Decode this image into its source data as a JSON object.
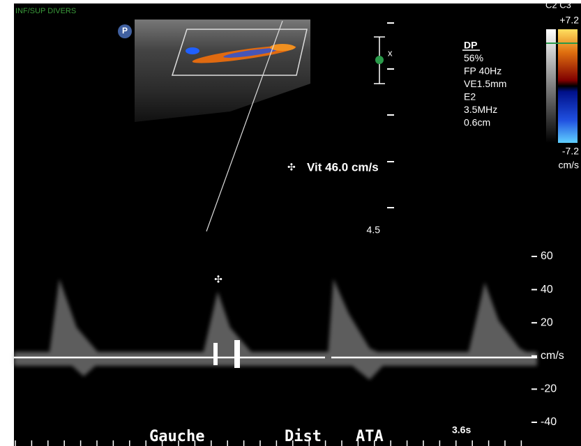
{
  "header": {
    "exam": "INF/SUP DIVERS"
  },
  "probe_badge": "P",
  "cursor_marker": "x",
  "color_scale": {
    "label": "C2 C3",
    "max": "+7.2",
    "min": "-7.2",
    "unit": "cm/s"
  },
  "parameters": [
    "DP",
    "56%",
    "FP  40Hz",
    "VE1.5mm",
    "E2",
    "3.5MHz",
    "0.6cm"
  ],
  "measurement": "Vit  46.0 cm/s",
  "depth": "4.5",
  "velocity_scale": [
    "60",
    "40",
    "20",
    "cm/s",
    "-20",
    "-40"
  ],
  "annotations": [
    "Gauche",
    "Dist",
    "ATA"
  ],
  "sweep": "3.6s"
}
